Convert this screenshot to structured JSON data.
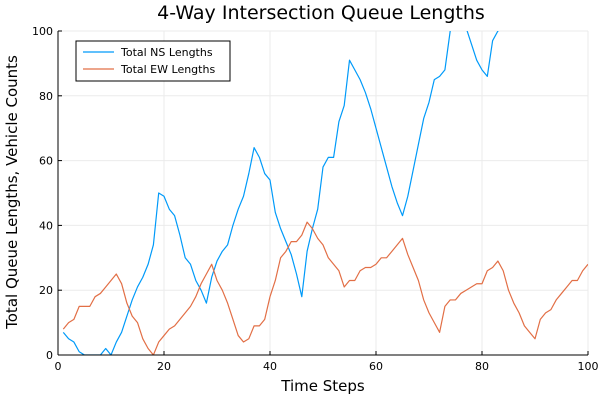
{
  "chart_data": {
    "type": "line",
    "title": "4-Way Intersection Queue Lengths",
    "xlabel": "Time Steps",
    "ylabel": "Total Queue Lengths, Vehicle Counts",
    "xlim": [
      0,
      100
    ],
    "ylim": [
      0,
      100
    ],
    "xticks": [
      0,
      20,
      40,
      60,
      80,
      100
    ],
    "yticks": [
      0,
      20,
      40,
      60,
      80,
      100
    ],
    "xtick_labels": [
      "0",
      "20",
      "40",
      "60",
      "80",
      "100"
    ],
    "ytick_labels": [
      "0",
      "20",
      "40",
      "60",
      "80",
      "100"
    ],
    "grid": true,
    "legend_position": "top-left",
    "colors": {
      "ns": "#009af9",
      "ew": "#e26f46"
    },
    "series": [
      {
        "name": "Total NS Lengths",
        "x": [
          1,
          2,
          3,
          4,
          5,
          6,
          7,
          8,
          9,
          10,
          11,
          12,
          13,
          14,
          15,
          16,
          17,
          18,
          19,
          20,
          21,
          22,
          23,
          24,
          25,
          26,
          27,
          28,
          29,
          30,
          31,
          32,
          33,
          34,
          35,
          36,
          37,
          38,
          39,
          40,
          41,
          42,
          43,
          44,
          45,
          46,
          47,
          48,
          49,
          50,
          51,
          52,
          53,
          54,
          55,
          56,
          57,
          58,
          59,
          60,
          61,
          62,
          63,
          64,
          65,
          66,
          67,
          68,
          69,
          70,
          71,
          72,
          73,
          74,
          75,
          76,
          77,
          78,
          79,
          80,
          81,
          82,
          83,
          84
        ],
        "values": [
          7,
          5,
          4,
          1,
          0,
          0,
          0,
          0,
          2,
          0,
          4,
          7,
          12,
          17,
          21,
          24,
          28,
          34,
          50,
          49,
          45,
          43,
          37,
          30,
          28,
          23,
          20,
          16,
          24,
          29,
          32,
          34,
          40,
          45,
          49,
          56,
          64,
          61,
          56,
          54,
          44,
          39,
          35,
          31,
          25,
          18,
          32,
          39,
          45,
          58,
          61,
          61,
          72,
          77,
          91,
          88,
          85,
          81,
          76,
          70,
          64,
          58,
          52,
          47,
          43,
          49,
          57,
          65,
          73,
          78,
          85,
          86,
          88,
          100,
          103,
          106,
          101,
          96,
          91,
          88,
          86,
          97,
          100,
          101
        ]
      },
      {
        "name": "Total EW Lengths",
        "x": [
          1,
          2,
          3,
          4,
          5,
          6,
          7,
          8,
          9,
          10,
          11,
          12,
          13,
          14,
          15,
          16,
          17,
          18,
          19,
          20,
          21,
          22,
          23,
          24,
          25,
          26,
          27,
          28,
          29,
          30,
          31,
          32,
          33,
          34,
          35,
          36,
          37,
          38,
          39,
          40,
          41,
          42,
          43,
          44,
          45,
          46,
          47,
          48,
          49,
          50,
          51,
          52,
          53,
          54,
          55,
          56,
          57,
          58,
          59,
          60,
          61,
          62,
          63,
          64,
          65,
          66,
          67,
          68,
          69,
          70,
          71,
          72,
          73,
          74,
          75,
          76,
          77,
          78,
          79,
          80,
          81,
          82,
          83,
          84,
          85,
          86,
          87,
          88,
          89,
          90,
          91,
          92,
          93,
          94,
          95,
          96,
          97,
          98,
          99,
          100
        ],
        "values": [
          8,
          10,
          11,
          15,
          15,
          15,
          18,
          19,
          21,
          23,
          25,
          22,
          16,
          12,
          10,
          5,
          2,
          0,
          4,
          6,
          8,
          9,
          11,
          13,
          15,
          18,
          22,
          25,
          28,
          23,
          20,
          16,
          11,
          6,
          4,
          5,
          9,
          9,
          11,
          18,
          23,
          30,
          32,
          35,
          35,
          37,
          41,
          39,
          36,
          34,
          30,
          28,
          26,
          21,
          23,
          23,
          26,
          27,
          27,
          28,
          30,
          30,
          32,
          34,
          36,
          31,
          27,
          23,
          17,
          13,
          10,
          7,
          15,
          17,
          17,
          19,
          20,
          21,
          22,
          22,
          26,
          27,
          29,
          26,
          20,
          16,
          13,
          9,
          7,
          5,
          11,
          13,
          14,
          17,
          19,
          21,
          23,
          23,
          26,
          28
        ]
      }
    ]
  }
}
